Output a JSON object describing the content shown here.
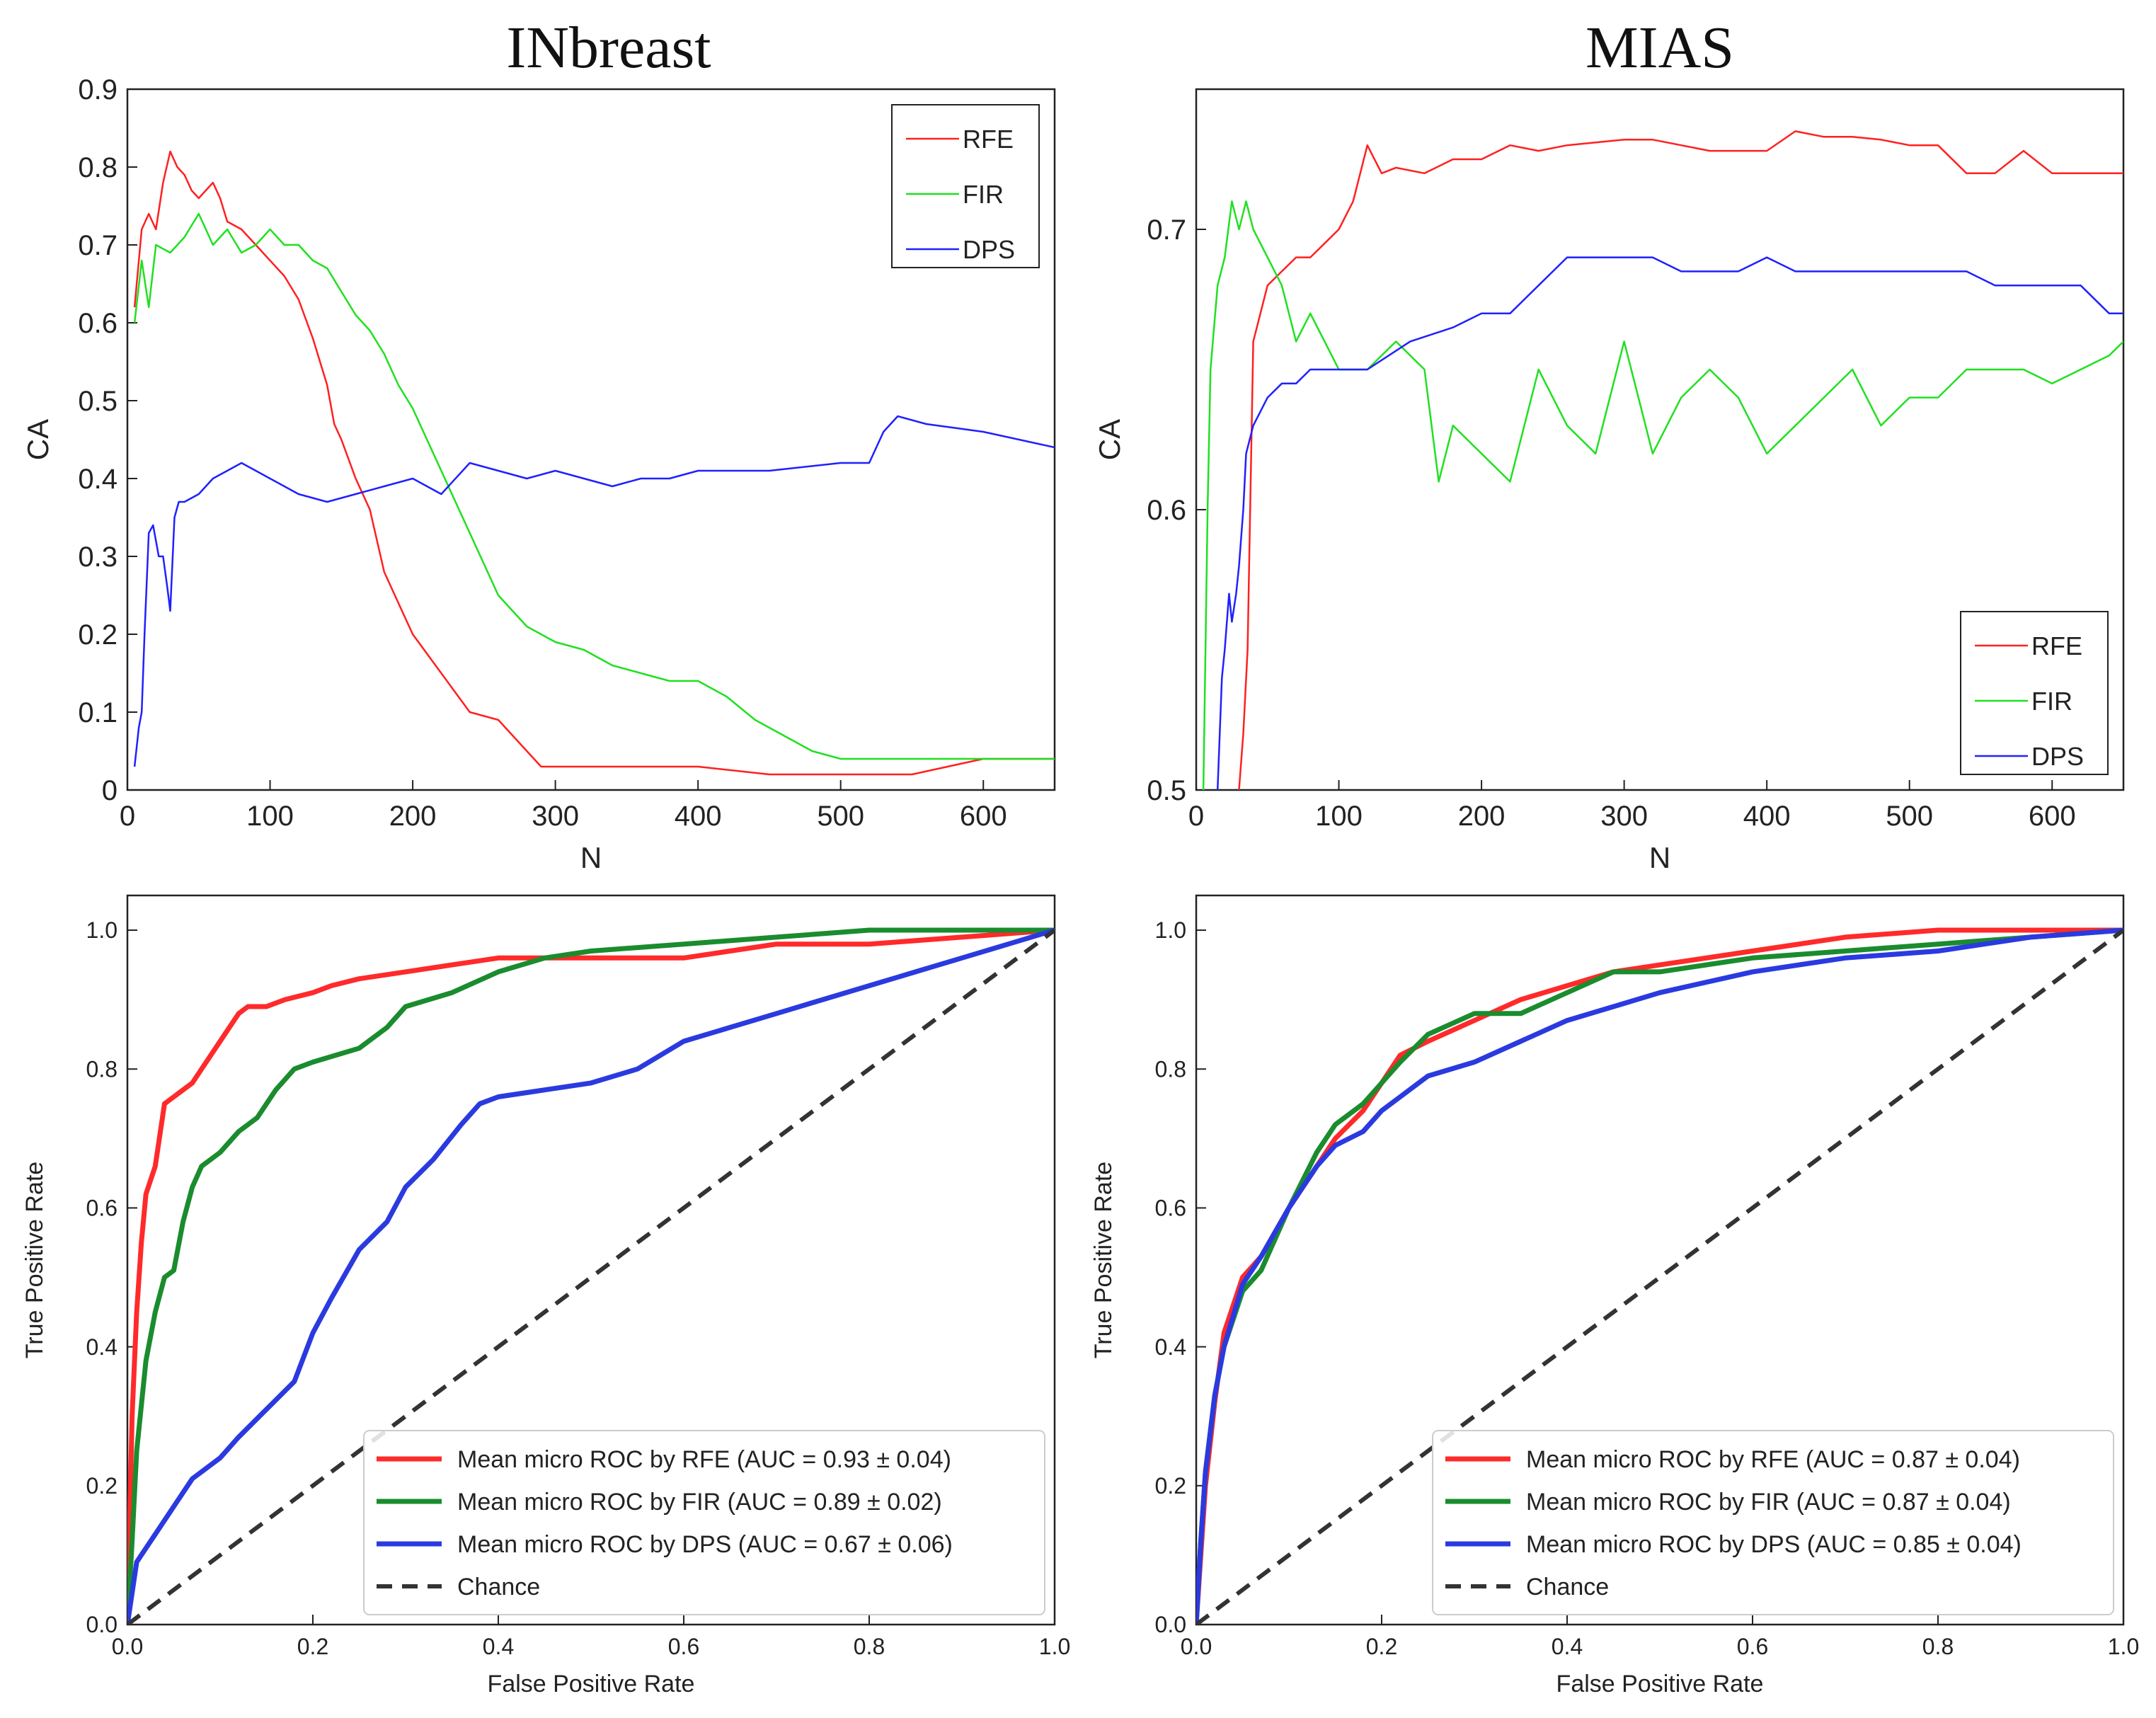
{
  "chart_data": [
    {
      "id": "ca_inbreast",
      "type": "line",
      "title": "INbreast",
      "xlabel": "N",
      "ylabel": "CA",
      "xlim": [
        0,
        650
      ],
      "ylim": [
        0,
        0.9
      ],
      "xticks": [
        0,
        100,
        200,
        300,
        400,
        500,
        600
      ],
      "yticks": [
        0,
        0.1,
        0.2,
        0.3,
        0.4,
        0.5,
        0.6,
        0.7,
        0.8,
        0.9
      ],
      "xtick_labels": [
        "0",
        "100",
        "200",
        "300",
        "400",
        "500",
        "600"
      ],
      "ytick_labels": [
        "0",
        "0.1",
        "0.2",
        "0.3",
        "0.4",
        "0.5",
        "0.6",
        "0.7",
        "0.8",
        "0.9"
      ],
      "legend_position": "top-right",
      "series": [
        {
          "name": "RFE",
          "color": "#ff2020",
          "x": [
            5,
            10,
            15,
            20,
            25,
            30,
            35,
            40,
            45,
            50,
            55,
            60,
            65,
            70,
            80,
            90,
            100,
            110,
            120,
            130,
            140,
            145,
            150,
            160,
            170,
            180,
            190,
            200,
            220,
            240,
            260,
            280,
            290,
            300,
            350,
            400,
            450,
            500,
            550,
            600,
            650
          ],
          "y": [
            0.62,
            0.72,
            0.74,
            0.72,
            0.78,
            0.82,
            0.8,
            0.79,
            0.77,
            0.76,
            0.77,
            0.78,
            0.76,
            0.73,
            0.72,
            0.7,
            0.68,
            0.66,
            0.63,
            0.58,
            0.52,
            0.47,
            0.45,
            0.4,
            0.36,
            0.28,
            0.24,
            0.2,
            0.15,
            0.1,
            0.09,
            0.05,
            0.03,
            0.03,
            0.03,
            0.03,
            0.02,
            0.02,
            0.02,
            0.04,
            0.04
          ]
        },
        {
          "name": "FIR",
          "color": "#20e020",
          "x": [
            5,
            10,
            15,
            20,
            30,
            40,
            50,
            60,
            70,
            80,
            90,
            100,
            110,
            120,
            130,
            140,
            150,
            160,
            170,
            180,
            190,
            200,
            210,
            220,
            240,
            260,
            280,
            300,
            320,
            340,
            360,
            380,
            400,
            420,
            440,
            460,
            480,
            500,
            550,
            600,
            650
          ],
          "y": [
            0.6,
            0.68,
            0.62,
            0.7,
            0.69,
            0.71,
            0.74,
            0.7,
            0.72,
            0.69,
            0.7,
            0.72,
            0.7,
            0.7,
            0.68,
            0.67,
            0.64,
            0.61,
            0.59,
            0.56,
            0.52,
            0.49,
            0.45,
            0.41,
            0.33,
            0.25,
            0.21,
            0.19,
            0.18,
            0.16,
            0.15,
            0.14,
            0.14,
            0.12,
            0.09,
            0.07,
            0.05,
            0.04,
            0.04,
            0.04,
            0.04
          ]
        },
        {
          "name": "DPS",
          "color": "#2020ff",
          "x": [
            5,
            8,
            10,
            12,
            15,
            18,
            22,
            25,
            28,
            30,
            33,
            36,
            40,
            50,
            60,
            70,
            80,
            90,
            100,
            120,
            140,
            160,
            180,
            200,
            220,
            240,
            260,
            280,
            300,
            320,
            340,
            360,
            380,
            400,
            450,
            500,
            520,
            530,
            540,
            560,
            600,
            650
          ],
          "y": [
            0.03,
            0.08,
            0.1,
            0.2,
            0.33,
            0.34,
            0.3,
            0.3,
            0.26,
            0.23,
            0.35,
            0.37,
            0.37,
            0.38,
            0.4,
            0.41,
            0.42,
            0.41,
            0.4,
            0.38,
            0.37,
            0.38,
            0.39,
            0.4,
            0.38,
            0.42,
            0.41,
            0.4,
            0.41,
            0.4,
            0.39,
            0.4,
            0.4,
            0.41,
            0.41,
            0.42,
            0.42,
            0.46,
            0.48,
            0.47,
            0.46,
            0.44
          ]
        }
      ]
    },
    {
      "id": "ca_mias",
      "type": "line",
      "title": "MIAS",
      "xlabel": "N",
      "ylabel": "CA",
      "xlim": [
        0,
        650
      ],
      "ylim": [
        0.5,
        0.75
      ],
      "xticks": [
        0,
        100,
        200,
        300,
        400,
        500,
        600
      ],
      "yticks": [
        0.5,
        0.6,
        0.7
      ],
      "xtick_labels": [
        "0",
        "100",
        "200",
        "300",
        "400",
        "500",
        "600"
      ],
      "ytick_labels": [
        "0.5",
        "0.6",
        "0.7"
      ],
      "legend_position": "bottom-right",
      "series": [
        {
          "name": "RFE",
          "color": "#ff2020",
          "x": [
            30,
            33,
            36,
            40,
            45,
            50,
            60,
            70,
            80,
            90,
            100,
            110,
            120,
            130,
            140,
            160,
            180,
            200,
            220,
            240,
            260,
            280,
            300,
            320,
            340,
            360,
            380,
            400,
            420,
            440,
            460,
            480,
            500,
            520,
            540,
            560,
            580,
            600,
            620,
            650
          ],
          "y": [
            0.5,
            0.52,
            0.55,
            0.66,
            0.67,
            0.68,
            0.685,
            0.69,
            0.69,
            0.695,
            0.7,
            0.71,
            0.73,
            0.72,
            0.722,
            0.72,
            0.725,
            0.725,
            0.73,
            0.728,
            0.73,
            0.731,
            0.732,
            0.732,
            0.73,
            0.728,
            0.728,
            0.728,
            0.735,
            0.733,
            0.733,
            0.732,
            0.73,
            0.73,
            0.72,
            0.72,
            0.728,
            0.72,
            0.72,
            0.72
          ]
        },
        {
          "name": "FIR",
          "color": "#20e020",
          "x": [
            5,
            8,
            10,
            15,
            20,
            25,
            30,
            35,
            40,
            50,
            60,
            70,
            80,
            90,
            100,
            120,
            140,
            160,
            170,
            180,
            200,
            220,
            240,
            260,
            280,
            300,
            320,
            340,
            360,
            380,
            400,
            420,
            440,
            460,
            480,
            500,
            520,
            540,
            560,
            580,
            600,
            620,
            640,
            650
          ],
          "y": [
            0.5,
            0.6,
            0.65,
            0.68,
            0.69,
            0.71,
            0.7,
            0.71,
            0.7,
            0.69,
            0.68,
            0.66,
            0.67,
            0.66,
            0.65,
            0.65,
            0.66,
            0.65,
            0.61,
            0.63,
            0.62,
            0.61,
            0.65,
            0.63,
            0.62,
            0.66,
            0.62,
            0.64,
            0.65,
            0.64,
            0.62,
            0.63,
            0.64,
            0.65,
            0.63,
            0.64,
            0.64,
            0.65,
            0.65,
            0.65,
            0.645,
            0.65,
            0.655,
            0.66
          ]
        },
        {
          "name": "DPS",
          "color": "#2020ff",
          "x": [
            15,
            18,
            20,
            23,
            25,
            28,
            30,
            33,
            35,
            40,
            50,
            60,
            70,
            80,
            100,
            120,
            150,
            180,
            200,
            220,
            240,
            260,
            280,
            300,
            320,
            340,
            360,
            380,
            400,
            420,
            440,
            460,
            480,
            500,
            520,
            540,
            560,
            580,
            600,
            620,
            640,
            650
          ],
          "y": [
            0.5,
            0.54,
            0.55,
            0.57,
            0.56,
            0.57,
            0.58,
            0.6,
            0.62,
            0.63,
            0.64,
            0.645,
            0.645,
            0.65,
            0.65,
            0.65,
            0.66,
            0.665,
            0.67,
            0.67,
            0.68,
            0.69,
            0.69,
            0.69,
            0.69,
            0.685,
            0.685,
            0.685,
            0.69,
            0.685,
            0.685,
            0.685,
            0.685,
            0.685,
            0.685,
            0.685,
            0.68,
            0.68,
            0.68,
            0.68,
            0.67,
            0.67
          ]
        }
      ]
    },
    {
      "id": "roc_inbreast",
      "type": "line",
      "title": "",
      "xlabel": "False Positive Rate",
      "ylabel": "True Positive Rate",
      "xlim": [
        0,
        1
      ],
      "ylim": [
        0,
        1.05
      ],
      "xticks": [
        0,
        0.2,
        0.4,
        0.6,
        0.8,
        1.0
      ],
      "yticks": [
        0,
        0.2,
        0.4,
        0.6,
        0.8,
        1.0
      ],
      "xtick_labels": [
        "0.0",
        "0.2",
        "0.4",
        "0.6",
        "0.8",
        "1.0"
      ],
      "ytick_labels": [
        "0.0",
        "0.2",
        "0.4",
        "0.6",
        "0.8",
        "1.0"
      ],
      "legend_position": "bottom-right",
      "series": [
        {
          "name": "Mean micro ROC by RFE (AUC = 0.93 ± 0.04)",
          "color": "#ff2a2a",
          "style": "solid",
          "x": [
            0,
            0.005,
            0.01,
            0.015,
            0.02,
            0.03,
            0.04,
            0.05,
            0.06,
            0.07,
            0.08,
            0.1,
            0.12,
            0.13,
            0.15,
            0.17,
            0.2,
            0.22,
            0.25,
            0.3,
            0.35,
            0.4,
            0.5,
            0.6,
            0.65,
            0.7,
            0.8,
            0.9,
            1.0
          ],
          "y": [
            0,
            0.3,
            0.45,
            0.55,
            0.62,
            0.66,
            0.75,
            0.76,
            0.77,
            0.78,
            0.8,
            0.84,
            0.88,
            0.89,
            0.89,
            0.9,
            0.91,
            0.92,
            0.93,
            0.94,
            0.95,
            0.96,
            0.96,
            0.96,
            0.97,
            0.98,
            0.98,
            0.99,
            1.0
          ]
        },
        {
          "name": "Mean micro ROC by FIR (AUC = 0.89 ± 0.02)",
          "color": "#1a8c2e",
          "style": "solid",
          "x": [
            0,
            0.005,
            0.01,
            0.02,
            0.03,
            0.04,
            0.05,
            0.06,
            0.07,
            0.08,
            0.1,
            0.12,
            0.14,
            0.16,
            0.18,
            0.2,
            0.25,
            0.28,
            0.3,
            0.35,
            0.4,
            0.45,
            0.5,
            0.6,
            0.7,
            0.8,
            0.9,
            1.0
          ],
          "y": [
            0,
            0.12,
            0.25,
            0.38,
            0.45,
            0.5,
            0.51,
            0.58,
            0.63,
            0.66,
            0.68,
            0.71,
            0.73,
            0.77,
            0.8,
            0.81,
            0.83,
            0.86,
            0.89,
            0.91,
            0.94,
            0.96,
            0.97,
            0.98,
            0.99,
            1.0,
            1.0,
            1.0
          ]
        },
        {
          "name": "Mean micro ROC by DPS (AUC = 0.67 ± 0.06)",
          "color": "#2a3ae0",
          "style": "solid",
          "x": [
            0,
            0.01,
            0.02,
            0.03,
            0.05,
            0.07,
            0.1,
            0.12,
            0.15,
            0.18,
            0.2,
            0.22,
            0.25,
            0.28,
            0.3,
            0.33,
            0.36,
            0.38,
            0.4,
            0.45,
            0.5,
            0.55,
            0.6,
            0.65,
            0.7,
            0.75,
            0.8,
            0.85,
            0.9,
            0.95,
            1.0
          ],
          "y": [
            0,
            0.09,
            0.11,
            0.13,
            0.17,
            0.21,
            0.24,
            0.27,
            0.31,
            0.35,
            0.42,
            0.47,
            0.54,
            0.58,
            0.63,
            0.67,
            0.72,
            0.75,
            0.76,
            0.77,
            0.78,
            0.8,
            0.84,
            0.86,
            0.88,
            0.9,
            0.92,
            0.94,
            0.96,
            0.98,
            1.0
          ]
        },
        {
          "name": "Chance",
          "color": "#333333",
          "style": "dashed",
          "x": [
            0,
            1
          ],
          "y": [
            0,
            1
          ]
        }
      ]
    },
    {
      "id": "roc_mias",
      "type": "line",
      "title": "",
      "xlabel": "False Positive Rate",
      "ylabel": "True Positive Rate",
      "xlim": [
        0,
        1
      ],
      "ylim": [
        0,
        1.05
      ],
      "xticks": [
        0,
        0.2,
        0.4,
        0.6,
        0.8,
        1.0
      ],
      "yticks": [
        0,
        0.2,
        0.4,
        0.6,
        0.8,
        1.0
      ],
      "xtick_labels": [
        "0.0",
        "0.2",
        "0.4",
        "0.6",
        "0.8",
        "1.0"
      ],
      "ytick_labels": [
        "0.0",
        "0.2",
        "0.4",
        "0.6",
        "0.8",
        "1.0"
      ],
      "legend_position": "bottom-right",
      "series": [
        {
          "name": "Mean micro ROC by RFE (AUC = 0.87 ± 0.04)",
          "color": "#ff2a2a",
          "style": "solid",
          "x": [
            0,
            0.005,
            0.01,
            0.02,
            0.03,
            0.05,
            0.07,
            0.1,
            0.13,
            0.15,
            0.18,
            0.2,
            0.22,
            0.25,
            0.3,
            0.35,
            0.4,
            0.45,
            0.5,
            0.6,
            0.7,
            0.8,
            0.9,
            1.0
          ],
          "y": [
            0,
            0.1,
            0.2,
            0.32,
            0.42,
            0.5,
            0.53,
            0.6,
            0.66,
            0.7,
            0.74,
            0.78,
            0.82,
            0.84,
            0.87,
            0.9,
            0.92,
            0.94,
            0.95,
            0.97,
            0.99,
            1.0,
            1.0,
            1.0
          ]
        },
        {
          "name": "Mean micro ROC by FIR (AUC = 0.87 ± 0.04)",
          "color": "#1a8c2e",
          "style": "solid",
          "x": [
            0,
            0.005,
            0.01,
            0.02,
            0.03,
            0.05,
            0.07,
            0.1,
            0.13,
            0.15,
            0.18,
            0.2,
            0.22,
            0.25,
            0.3,
            0.35,
            0.4,
            0.45,
            0.5,
            0.6,
            0.7,
            0.8,
            0.9,
            1.0
          ],
          "y": [
            0,
            0.12,
            0.22,
            0.33,
            0.4,
            0.48,
            0.51,
            0.6,
            0.68,
            0.72,
            0.75,
            0.78,
            0.81,
            0.85,
            0.88,
            0.88,
            0.91,
            0.94,
            0.94,
            0.96,
            0.97,
            0.98,
            0.99,
            1.0
          ]
        },
        {
          "name": "Mean micro ROC by DPS (AUC = 0.85 ± 0.04)",
          "color": "#2a3ae0",
          "style": "solid",
          "x": [
            0,
            0.005,
            0.01,
            0.02,
            0.03,
            0.05,
            0.07,
            0.1,
            0.13,
            0.15,
            0.18,
            0.2,
            0.22,
            0.25,
            0.3,
            0.35,
            0.4,
            0.45,
            0.5,
            0.6,
            0.7,
            0.8,
            0.9,
            1.0
          ],
          "y": [
            0,
            0.12,
            0.22,
            0.33,
            0.4,
            0.49,
            0.53,
            0.6,
            0.66,
            0.69,
            0.71,
            0.74,
            0.76,
            0.79,
            0.81,
            0.84,
            0.87,
            0.89,
            0.91,
            0.94,
            0.96,
            0.97,
            0.99,
            1.0
          ]
        },
        {
          "name": "Chance",
          "color": "#333333",
          "style": "dashed",
          "x": [
            0,
            1
          ],
          "y": [
            0,
            1
          ]
        }
      ]
    }
  ]
}
